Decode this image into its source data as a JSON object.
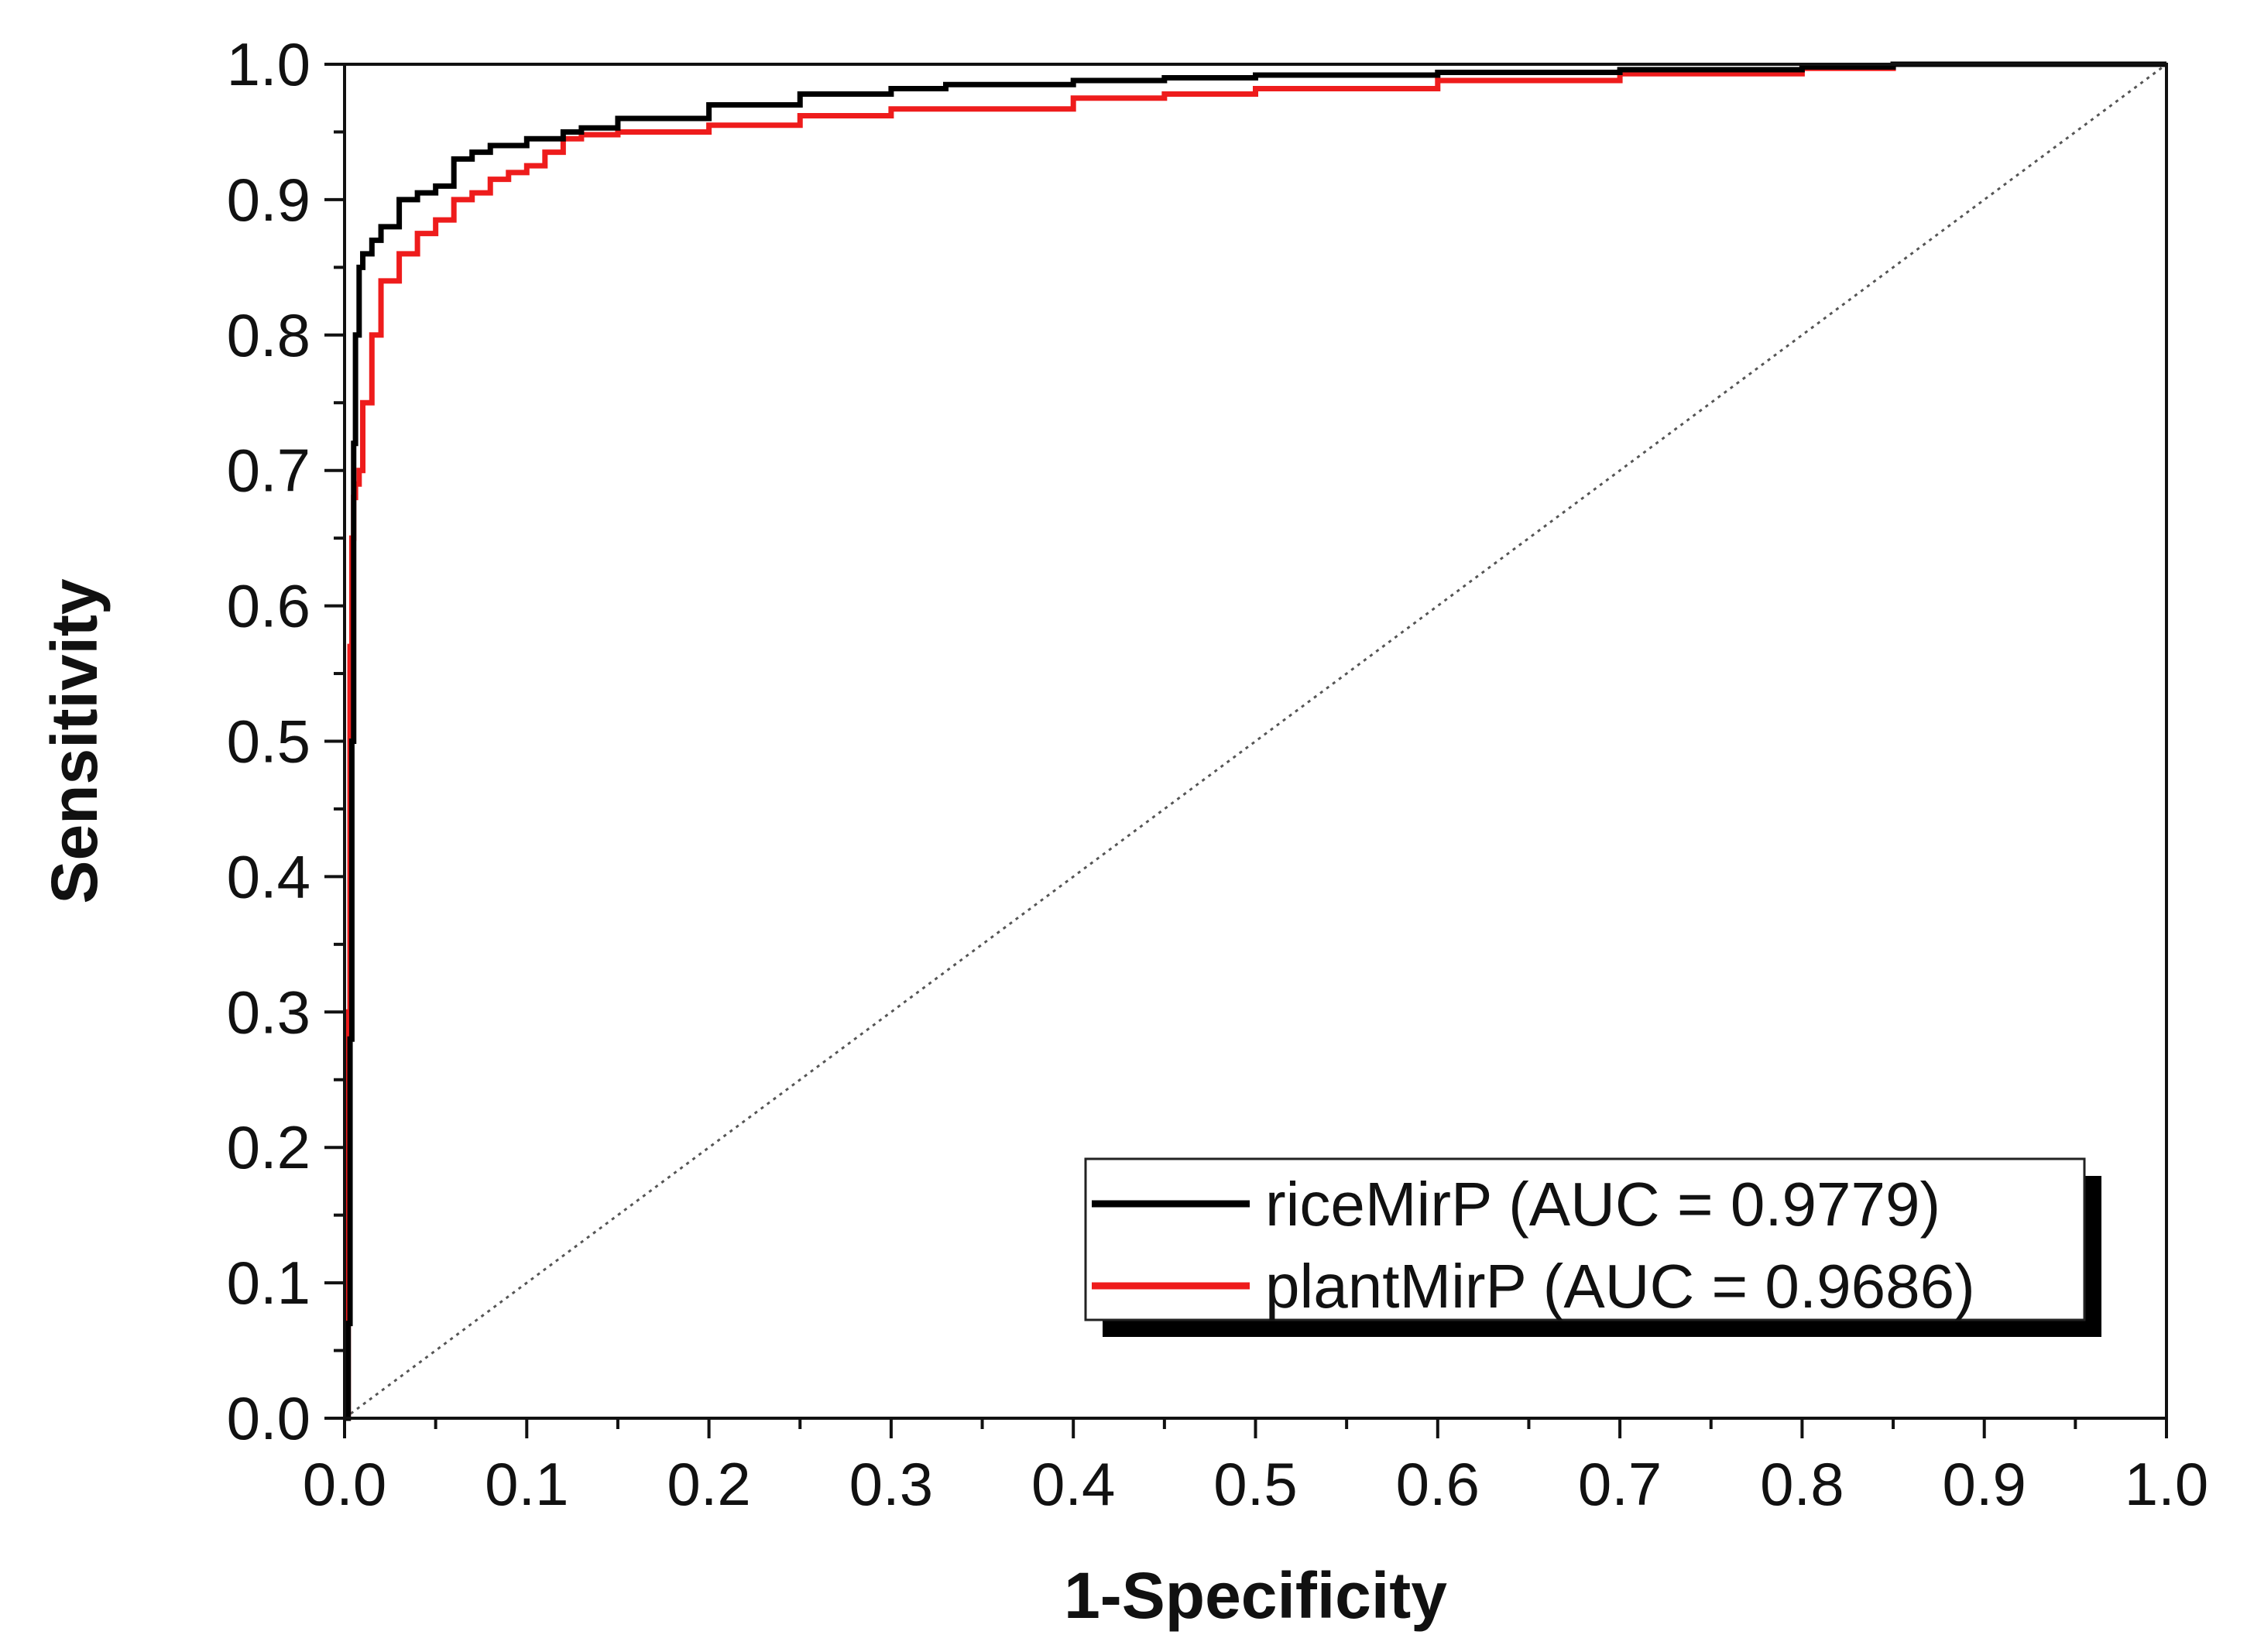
{
  "chart_data": {
    "type": "line",
    "title": "",
    "xlabel": "1-Specificity",
    "ylabel": "Sensitivity",
    "xlim": [
      0.0,
      1.0
    ],
    "ylim": [
      0.0,
      1.0
    ],
    "x_ticks": [
      "0.0",
      "0.1",
      "0.2",
      "0.3",
      "0.4",
      "0.5",
      "0.6",
      "0.7",
      "0.8",
      "0.9",
      "1.0"
    ],
    "y_ticks": [
      "0.0",
      "0.1",
      "0.2",
      "0.3",
      "0.4",
      "0.5",
      "0.6",
      "0.7",
      "0.8",
      "0.9",
      "1.0"
    ],
    "grid": false,
    "legend_position": "bottom-right",
    "reference_line": {
      "name": "chance diagonal",
      "style": "dotted",
      "color": "#555555",
      "x": [
        0,
        1
      ],
      "y": [
        0,
        1
      ]
    },
    "series": [
      {
        "name": "riceMirP (AUC = 0.9779)",
        "color": "#000000",
        "x": [
          0,
          0.002,
          0.003,
          0.004,
          0.005,
          0.006,
          0.008,
          0.01,
          0.015,
          0.02,
          0.03,
          0.04,
          0.05,
          0.06,
          0.07,
          0.08,
          0.09,
          0.1,
          0.11,
          0.12,
          0.13,
          0.15,
          0.2,
          0.25,
          0.3,
          0.33,
          0.4,
          0.45,
          0.5,
          0.6,
          0.7,
          0.8,
          0.85,
          0.9,
          1.0
        ],
        "y": [
          0,
          0.07,
          0.28,
          0.5,
          0.72,
          0.8,
          0.85,
          0.86,
          0.87,
          0.88,
          0.9,
          0.905,
          0.91,
          0.93,
          0.935,
          0.94,
          0.94,
          0.945,
          0.945,
          0.95,
          0.953,
          0.96,
          0.97,
          0.978,
          0.982,
          0.985,
          0.988,
          0.99,
          0.992,
          0.994,
          0.996,
          0.998,
          1.0,
          1.0,
          1.0
        ]
      },
      {
        "name": "plantMirP (AUC = 0.9686)",
        "color": "#ee1c1c",
        "x": [
          0,
          0.002,
          0.003,
          0.004,
          0.005,
          0.006,
          0.008,
          0.01,
          0.015,
          0.02,
          0.03,
          0.04,
          0.05,
          0.06,
          0.07,
          0.08,
          0.09,
          0.1,
          0.11,
          0.12,
          0.13,
          0.15,
          0.2,
          0.25,
          0.3,
          0.4,
          0.45,
          0.5,
          0.6,
          0.7,
          0.8,
          0.85,
          0.9,
          1.0
        ],
        "y": [
          0,
          0.3,
          0.57,
          0.65,
          0.68,
          0.69,
          0.7,
          0.75,
          0.8,
          0.84,
          0.86,
          0.875,
          0.885,
          0.9,
          0.905,
          0.915,
          0.92,
          0.925,
          0.935,
          0.945,
          0.948,
          0.95,
          0.955,
          0.962,
          0.967,
          0.975,
          0.978,
          0.982,
          0.988,
          0.993,
          0.997,
          1.0,
          1.0,
          1.0
        ]
      }
    ]
  }
}
